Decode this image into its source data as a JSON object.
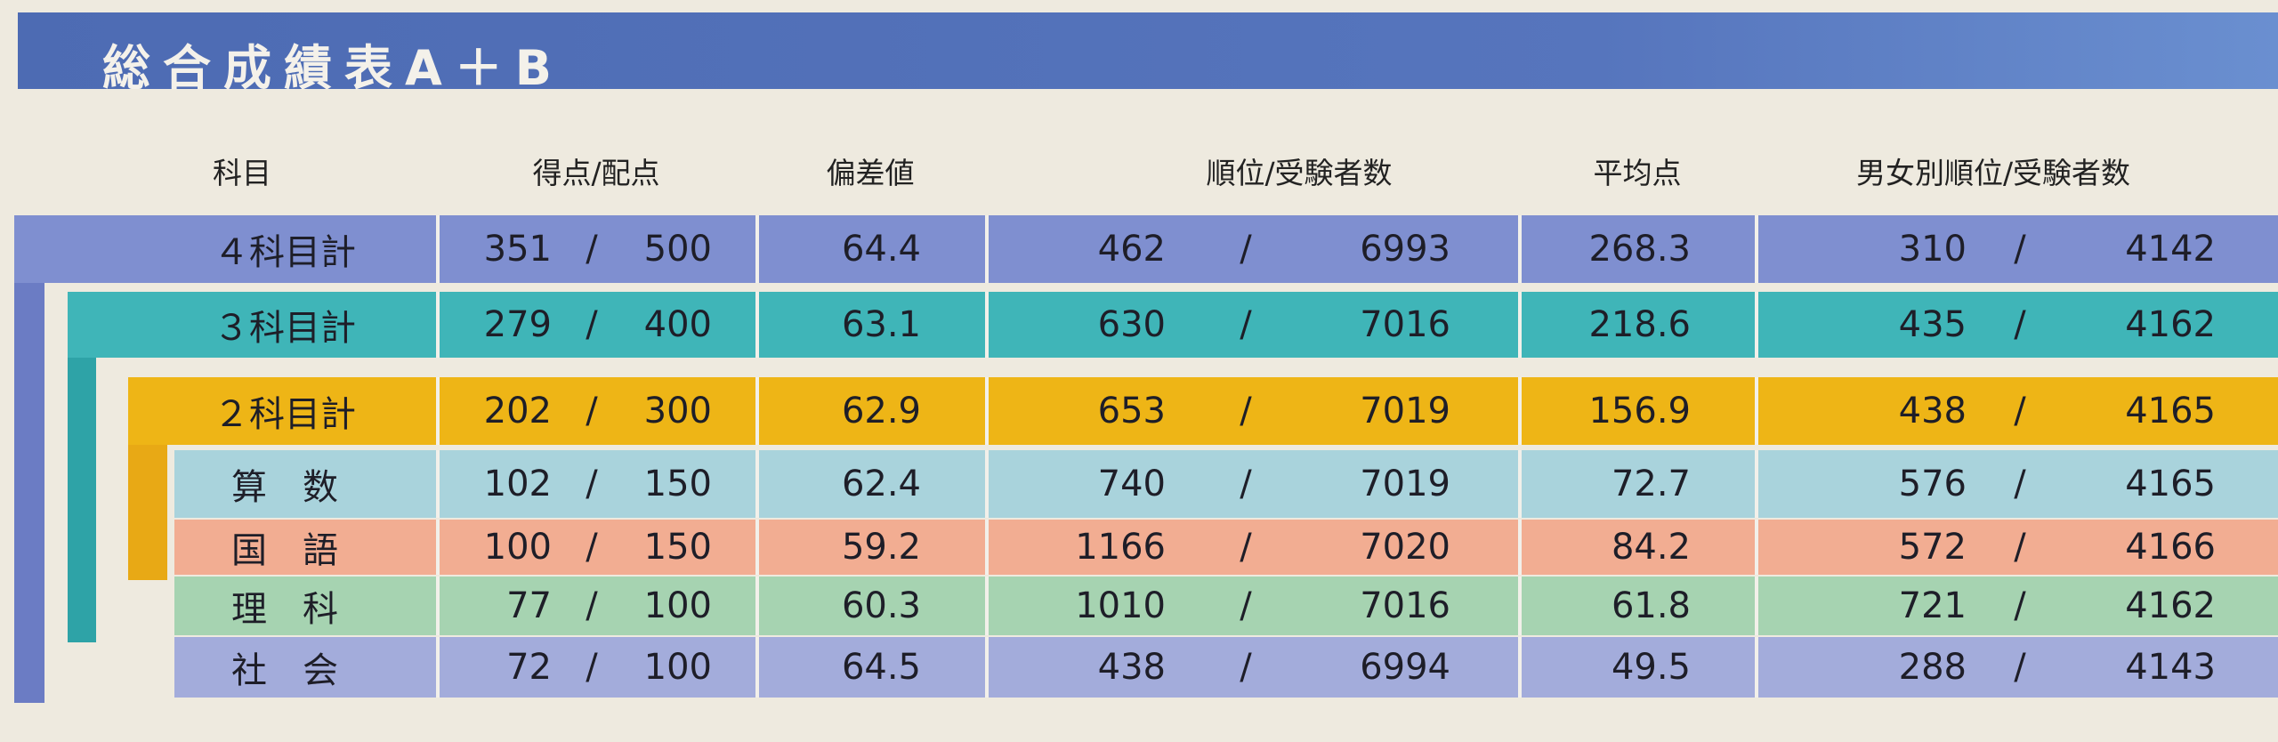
{
  "title": "総合成績表A＋B",
  "headers": {
    "subject": "科目",
    "score": "得点/配点",
    "deviation": "偏差値",
    "rank": "順位/受験者数",
    "average": "平均点",
    "gender_rank": "男女別順位/受験者数"
  },
  "separator": "/",
  "rows": [
    {
      "subject": "４科目計",
      "score": "351",
      "max": "500",
      "deviation": "64.4",
      "rank": "462",
      "examinees": "6993",
      "average": "268.3",
      "gender_rank": "310",
      "gender_examinees": "4142",
      "color": "#7f8fd0"
    },
    {
      "subject": "３科目計",
      "score": "279",
      "max": "400",
      "deviation": "63.1",
      "rank": "630",
      "examinees": "7016",
      "average": "218.6",
      "gender_rank": "435",
      "gender_examinees": "4162",
      "color": "#3fb5b8"
    },
    {
      "subject": "２科目計",
      "score": "202",
      "max": "300",
      "deviation": "62.9",
      "rank": "653",
      "examinees": "7019",
      "average": "156.9",
      "gender_rank": "438",
      "gender_examinees": "4165",
      "color": "#eeb516"
    },
    {
      "subject": "算　数",
      "score": "102",
      "max": "150",
      "deviation": "62.4",
      "rank": "740",
      "examinees": "7019",
      "average": "72.7",
      "gender_rank": "576",
      "gender_examinees": "4165",
      "color": "#a9d3dc"
    },
    {
      "subject": "国　語",
      "score": "100",
      "max": "150",
      "deviation": "59.2",
      "rank": "1166",
      "examinees": "7020",
      "average": "84.2",
      "gender_rank": "572",
      "gender_examinees": "4166",
      "color": "#f2ad92"
    },
    {
      "subject": "理　科",
      "score": "77",
      "max": "100",
      "deviation": "60.3",
      "rank": "1010",
      "examinees": "7016",
      "average": "61.8",
      "gender_rank": "721",
      "gender_examinees": "4162",
      "color": "#a6d3b1"
    },
    {
      "subject": "社　会",
      "score": "72",
      "max": "100",
      "deviation": "64.5",
      "rank": "438",
      "examinees": "6994",
      "average": "49.5",
      "gender_rank": "288",
      "gender_examinees": "4143",
      "color": "#a3acdb"
    }
  ]
}
